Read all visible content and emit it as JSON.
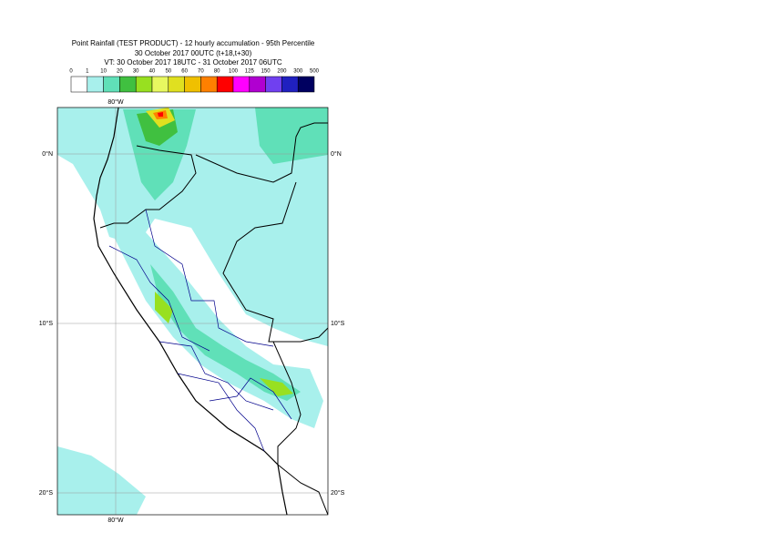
{
  "header": {
    "title": "Point Rainfall (TEST PRODUCT) - 12 hourly accumulation - 95th Percentile",
    "base_time": "30 October 2017 00UTC (t+18,t+30)",
    "valid_time": "VT: 30 October 2017 18UTC - 31 October 2017 06UTC"
  },
  "legend": {
    "thresholds": [
      0,
      1,
      10,
      20,
      30,
      40,
      50,
      60,
      70,
      80,
      100,
      125,
      150,
      200,
      300,
      500
    ],
    "colors": [
      "#ffffff",
      "#a8f0ec",
      "#60e0b8",
      "#40c040",
      "#98e020",
      "#e8f860",
      "#e0e020",
      "#f0c000",
      "#ff8000",
      "#ff0000",
      "#ff00ff",
      "#b000d0",
      "#7040f0",
      "#2020c0",
      "#000060"
    ]
  },
  "map": {
    "lon_label": "80°W",
    "lat_labels": [
      "0°N",
      "10°S",
      "20°S"
    ]
  }
}
